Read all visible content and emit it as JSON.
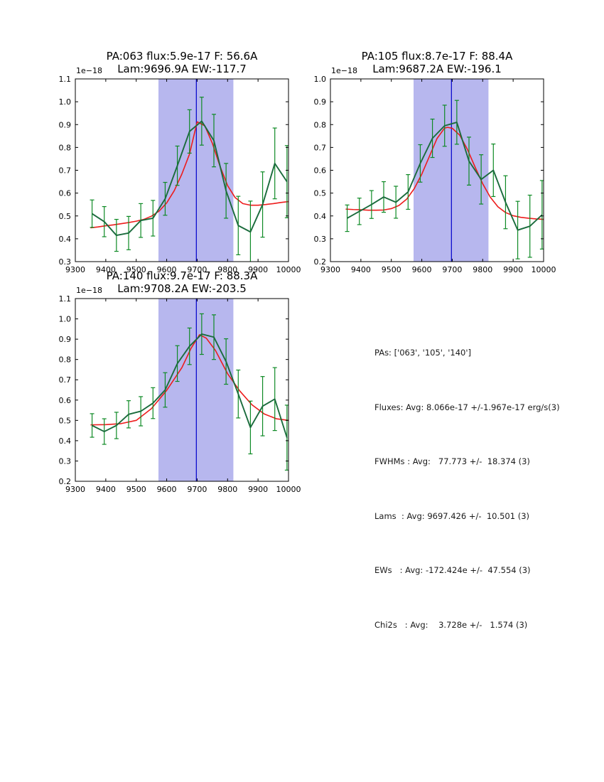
{
  "colors": {
    "band": "#b7b7ee",
    "vline": "#0000cc",
    "fit": "#ed1c1c",
    "data": "#1a6b3c",
    "err": "#0e8a25",
    "axis": "#000000"
  },
  "stats": {
    "lines": [
      "PAs: ['063', '105', '140']",
      "Fluxes: Avg: 8.066e-17 +/-1.967e-17 erg/s(3)",
      "FWHMs : Avg:   77.773 +/-  18.374 (3)",
      "Lams  : Avg: 9697.426 +/-  10.501 (3)",
      "EWs   : Avg: -172.424e +/-  47.554 (3)",
      "Chi2s   : Avg:    3.728e +/-   1.574 (3)"
    ]
  },
  "chart_data": [
    {
      "type": "line",
      "title_line1": "PA:063 flux:5.9e-17 F: 56.6A",
      "title_line2": "Lam:9696.9A EW:-117.7",
      "offset_label": "1e−18",
      "xlim": [
        9300,
        10000
      ],
      "ylim": [
        0.3,
        1.1
      ],
      "xticks": [
        9300,
        9400,
        9500,
        9600,
        9700,
        9800,
        9900,
        10000
      ],
      "ytick_step": 0.1,
      "band": [
        9573,
        9819
      ],
      "vline": 9697.4,
      "series": [
        {
          "name": "data",
          "x": [
            9355,
            9395,
            9435,
            9475,
            9515,
            9555,
            9595,
            9635,
            9675,
            9715,
            9755,
            9795,
            9835,
            9875,
            9915,
            9955,
            9995
          ],
          "y": [
            0.51,
            0.475,
            0.415,
            0.425,
            0.48,
            0.49,
            0.575,
            0.72,
            0.87,
            0.915,
            0.83,
            0.61,
            0.458,
            0.43,
            0.55,
            0.73,
            0.65
          ],
          "yerr": [
            0.06,
            0.066,
            0.07,
            0.073,
            0.074,
            0.078,
            0.072,
            0.086,
            0.095,
            0.105,
            0.115,
            0.12,
            0.128,
            0.135,
            0.143,
            0.155,
            0.158
          ]
        },
        {
          "name": "fit",
          "x": [
            9350,
            9375,
            9400,
            9425,
            9450,
            9475,
            9500,
            9525,
            9550,
            9575,
            9600,
            9625,
            9650,
            9675,
            9700,
            9725,
            9750,
            9775,
            9800,
            9825,
            9850,
            9875,
            9900,
            9925,
            9950,
            9975,
            10000
          ],
          "y": [
            0.448,
            0.452,
            0.457,
            0.461,
            0.466,
            0.471,
            0.477,
            0.485,
            0.499,
            0.521,
            0.557,
            0.611,
            0.684,
            0.771,
            0.912,
            0.895,
            0.818,
            0.718,
            0.633,
            0.58,
            0.554,
            0.547,
            0.547,
            0.55,
            0.554,
            0.559,
            0.563
          ]
        }
      ]
    },
    {
      "type": "line",
      "title_line1": "PA:105 flux:8.7e-17 F: 88.4A",
      "title_line2": "Lam:9687.2A EW:-196.1",
      "offset_label": "1e−18",
      "xlim": [
        9300,
        10000
      ],
      "ylim": [
        0.2,
        1.0
      ],
      "xticks": [
        9300,
        9400,
        9500,
        9600,
        9700,
        9800,
        9900,
        10000
      ],
      "ytick_step": 0.1,
      "band": [
        9573,
        9819
      ],
      "vline": 9697.4,
      "series": [
        {
          "name": "data",
          "x": [
            9355,
            9395,
            9435,
            9475,
            9515,
            9555,
            9595,
            9635,
            9675,
            9715,
            9755,
            9795,
            9835,
            9875,
            9915,
            9955,
            9995
          ],
          "y": [
            0.39,
            0.42,
            0.45,
            0.483,
            0.46,
            0.505,
            0.63,
            0.74,
            0.795,
            0.81,
            0.64,
            0.56,
            0.6,
            0.46,
            0.338,
            0.355,
            0.405
          ],
          "yerr": [
            0.058,
            0.058,
            0.061,
            0.067,
            0.07,
            0.076,
            0.082,
            0.084,
            0.09,
            0.096,
            0.105,
            0.108,
            0.115,
            0.116,
            0.126,
            0.136,
            0.15
          ]
        },
        {
          "name": "fit",
          "x": [
            9350,
            9375,
            9400,
            9425,
            9450,
            9475,
            9500,
            9525,
            9550,
            9575,
            9600,
            9625,
            9650,
            9675,
            9685,
            9700,
            9725,
            9750,
            9775,
            9800,
            9825,
            9850,
            9875,
            9900,
            9925,
            9950,
            9975,
            10000
          ],
          "y": [
            0.43,
            0.428,
            0.427,
            0.425,
            0.425,
            0.426,
            0.432,
            0.446,
            0.473,
            0.519,
            0.583,
            0.661,
            0.739,
            0.785,
            0.788,
            0.784,
            0.753,
            0.691,
            0.614,
            0.541,
            0.482,
            0.44,
            0.415,
            0.401,
            0.394,
            0.39,
            0.387,
            0.385
          ]
        }
      ]
    },
    {
      "type": "line",
      "title_line1": "PA:140 flux:9.7e-17 F: 88.3A",
      "title_line2": "Lam:9708.2A EW:-203.5",
      "offset_label": "1e−18",
      "xlim": [
        9300,
        10000
      ],
      "ylim": [
        0.2,
        1.1
      ],
      "xticks": [
        9300,
        9400,
        9500,
        9600,
        9700,
        9800,
        9900,
        10000
      ],
      "ytick_step": 0.1,
      "band": [
        9573,
        9819
      ],
      "vline": 9697.4,
      "series": [
        {
          "name": "data",
          "x": [
            9355,
            9395,
            9435,
            9475,
            9515,
            9555,
            9595,
            9635,
            9675,
            9715,
            9755,
            9795,
            9835,
            9875,
            9915,
            9955,
            9995
          ],
          "y": [
            0.475,
            0.445,
            0.475,
            0.53,
            0.545,
            0.585,
            0.65,
            0.78,
            0.865,
            0.925,
            0.91,
            0.79,
            0.63,
            0.465,
            0.57,
            0.605,
            0.415
          ],
          "yerr": [
            0.058,
            0.063,
            0.065,
            0.067,
            0.072,
            0.076,
            0.085,
            0.088,
            0.09,
            0.1,
            0.11,
            0.112,
            0.118,
            0.13,
            0.146,
            0.155,
            0.16
          ]
        },
        {
          "name": "fit",
          "x": [
            9350,
            9400,
            9450,
            9500,
            9550,
            9600,
            9650,
            9680,
            9708,
            9730,
            9760,
            9800,
            9840,
            9880,
            9920,
            9960,
            10000
          ],
          "y": [
            0.478,
            0.479,
            0.484,
            0.5,
            0.558,
            0.648,
            0.76,
            0.855,
            0.922,
            0.905,
            0.845,
            0.73,
            0.645,
            0.577,
            0.532,
            0.508,
            0.5
          ]
        }
      ]
    }
  ]
}
